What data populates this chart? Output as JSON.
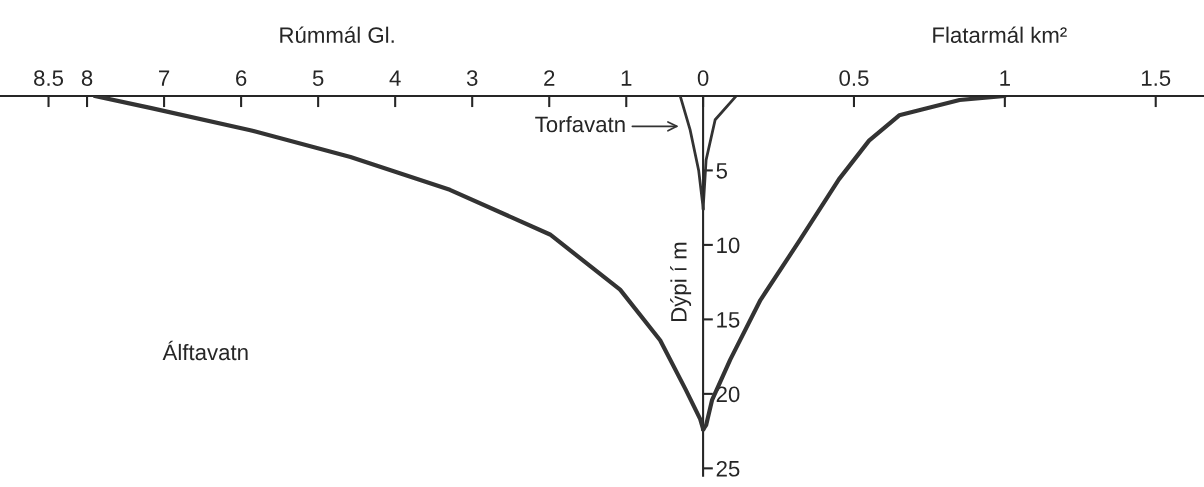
{
  "chart_data": {
    "type": "line",
    "xlabel": "Flatarmál km²",
    "x2label": "Rúmmál Gl.",
    "ylabel": "Dýpi í m",
    "xlim": [
      -2.33,
      1.66
    ],
    "xticks": [
      0,
      0.5,
      1,
      1.5
    ],
    "x2lim": [
      9.13,
      -6.5
    ],
    "x2ticks": [
      1,
      2,
      3,
      4,
      5,
      6,
      7,
      8,
      8.5
    ],
    "ylim": [
      25.5,
      0
    ],
    "yticks": [
      5,
      10,
      15,
      20,
      25
    ],
    "grid": false,
    "marker": "none",
    "line_style": "solid",
    "legend": false,
    "annotations": [
      "Torfavatn",
      "Álftavatn"
    ],
    "series": [
      {
        "axis": "x2",
        "color": "#333333",
        "x": [
          7.9,
          7.18,
          5.88,
          4.58,
          3.29,
          1.99,
          1.08,
          0.56,
          0.23,
          0.04,
          0
        ],
        "values": [
          0,
          0.8,
          2.3,
          4.1,
          6.3,
          9.3,
          13.0,
          16.4,
          19.7,
          21.7,
          22.4
        ]
      },
      {
        "color": "#333333",
        "x": [
          1.0,
          0.85,
          0.65,
          0.55,
          0.45,
          0.32,
          0.19,
          0.09,
          0.03,
          0.01,
          0
        ],
        "values": [
          0,
          0.27,
          1.3,
          3.0,
          5.6,
          9.7,
          13.7,
          17.7,
          20.4,
          22.1,
          22.4
        ]
      },
      {
        "axis": "x2",
        "color": "#333333",
        "x": [
          0.3,
          0.17,
          0.06,
          0
        ],
        "values": [
          0,
          2.3,
          5,
          7.6
        ]
      },
      {
        "color": "#333333",
        "x": [
          0.11,
          0.04,
          0.01,
          0
        ],
        "values": [
          0,
          1.6,
          4.3,
          7.6
        ]
      }
    ]
  }
}
